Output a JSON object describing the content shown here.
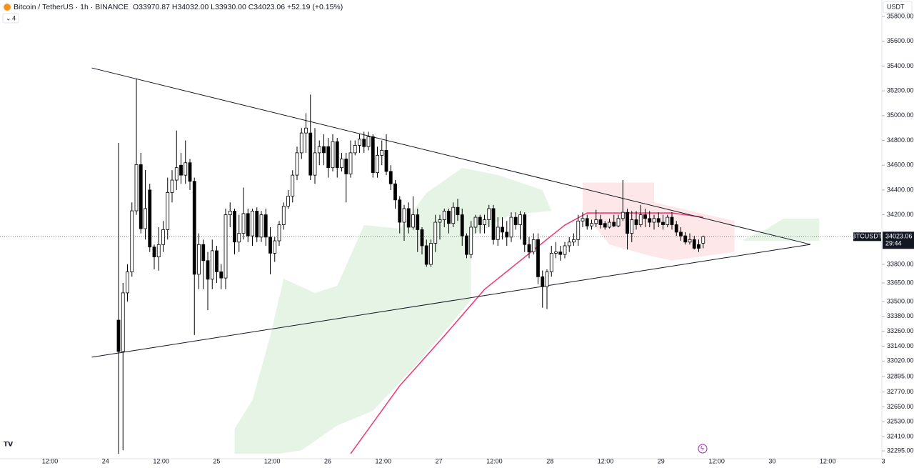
{
  "header": {
    "symbol": "Bitcoin / TetherUS · 1h · BINANCE",
    "ohlc": "O33970.87 H34032.00 L33930.00 C34023.06 +52.19 (+0.15%)",
    "indicators": "4",
    "currency": "USDT"
  },
  "chart_data": {
    "type": "candlestick",
    "up_color": "#ffffff",
    "down_color": "#000000",
    "wick_color": "#000000",
    "candles": [
      [
        33350,
        34780,
        32272,
        33097
      ],
      [
        33097,
        33650,
        32300,
        33570
      ],
      [
        33570,
        33800,
        33500,
        33740
      ],
      [
        33740,
        34300,
        33700,
        34232
      ],
      [
        34232,
        35300,
        34200,
        34605
      ],
      [
        34605,
        34700,
        34050,
        34088
      ],
      [
        34088,
        34560,
        34000,
        34250
      ],
      [
        34400,
        34450,
        33900,
        33940
      ],
      [
        33940,
        33960,
        33760,
        33860
      ],
      [
        33860,
        34100,
        33750,
        33960
      ],
      [
        33960,
        34150,
        33900,
        34080
      ],
      [
        34080,
        34500,
        34000,
        34380
      ],
      [
        34380,
        34560,
        34300,
        34480
      ],
      [
        34480,
        34880,
        34400,
        34580
      ],
      [
        34600,
        34700,
        34450,
        34520
      ],
      [
        34520,
        34800,
        34450,
        34620
      ],
      [
        34620,
        34650,
        34400,
        34470
      ],
      [
        34470,
        34500,
        33230,
        33720
      ],
      [
        33720,
        34050,
        33600,
        33960
      ],
      [
        33960,
        34000,
        33600,
        33830
      ],
      [
        33830,
        33900,
        33430,
        33680
      ],
      [
        33680,
        34000,
        33600,
        33910
      ],
      [
        33910,
        33950,
        33650,
        33740
      ],
      [
        33740,
        33800,
        33600,
        33690
      ],
      [
        33690,
        34250,
        33600,
        34200
      ],
      [
        34200,
        34300,
        34100,
        34230
      ],
      [
        34230,
        34250,
        33880,
        33980
      ],
      [
        33980,
        34200,
        33900,
        34050
      ],
      [
        34050,
        34420,
        34000,
        34210
      ],
      [
        34210,
        34250,
        33980,
        34030
      ],
      [
        34030,
        34250,
        33950,
        34230
      ],
      [
        34230,
        34260,
        33980,
        34020
      ],
      [
        34020,
        34230,
        33980,
        34200
      ],
      [
        34200,
        34250,
        33950,
        34020
      ],
      [
        34020,
        34100,
        33720,
        33890
      ],
      [
        33890,
        34020,
        33820,
        33990
      ],
      [
        33990,
        34150,
        33950,
        34120
      ],
      [
        34120,
        34300,
        34080,
        34270
      ],
      [
        34270,
        34400,
        34250,
        34350
      ],
      [
        34350,
        34560,
        34300,
        34520
      ],
      [
        34520,
        34750,
        34480,
        34700
      ],
      [
        34700,
        34900,
        34650,
        34860
      ],
      [
        34860,
        35020,
        34700,
        34900
      ],
      [
        34860,
        35170,
        34480,
        34520
      ],
      [
        34520,
        34900,
        34450,
        34700
      ],
      [
        34700,
        34800,
        34600,
        34750
      ],
      [
        34750,
        34850,
        34600,
        34700
      ],
      [
        34750,
        34820,
        34500,
        34580
      ],
      [
        34580,
        34850,
        34550,
        34790
      ],
      [
        34790,
        34820,
        34500,
        34580
      ],
      [
        34580,
        34700,
        34550,
        34650
      ],
      [
        34650,
        34700,
        34300,
        34530
      ],
      [
        34530,
        34800,
        34500,
        34700
      ],
      [
        34700,
        34800,
        34680,
        34760
      ],
      [
        34760,
        34850,
        34700,
        34810
      ],
      [
        34810,
        34870,
        34700,
        34750
      ],
      [
        34750,
        34870,
        34720,
        34830
      ],
      [
        34830,
        34850,
        34500,
        34540
      ],
      [
        34540,
        34750,
        34500,
        34680
      ],
      [
        34680,
        34800,
        34600,
        34720
      ],
      [
        34720,
        34850,
        34520,
        34550
      ],
      [
        34550,
        34600,
        34400,
        34450
      ],
      [
        34450,
        34480,
        34250,
        34320
      ],
      [
        34320,
        34350,
        34050,
        34140
      ],
      [
        34140,
        34280,
        33990,
        34250
      ],
      [
        34250,
        34300,
        34050,
        34100
      ],
      [
        34100,
        34350,
        34080,
        34200
      ],
      [
        34200,
        34250,
        33900,
        34080
      ],
      [
        34080,
        34100,
        33880,
        33950
      ],
      [
        33950,
        34000,
        33780,
        33800
      ],
      [
        33800,
        34000,
        33780,
        33970
      ],
      [
        33970,
        34200,
        33900,
        34140
      ],
      [
        34140,
        34200,
        34000,
        34160
      ],
      [
        34160,
        34250,
        34100,
        34230
      ],
      [
        34230,
        34250,
        34050,
        34130
      ],
      [
        34130,
        34300,
        34100,
        34260
      ],
      [
        34260,
        34330,
        34150,
        34200
      ],
      [
        34200,
        34250,
        33950,
        34030
      ],
      [
        34030,
        34050,
        33850,
        33880
      ],
      [
        33880,
        34150,
        33850,
        34100
      ],
      [
        34100,
        34200,
        34050,
        34180
      ],
      [
        34180,
        34200,
        34050,
        34120
      ],
      [
        34120,
        34200,
        34050,
        34160
      ],
      [
        34160,
        34280,
        34100,
        34250
      ],
      [
        34250,
        34280,
        33960,
        34000
      ],
      [
        34000,
        34180,
        33950,
        34100
      ],
      [
        34100,
        34180,
        34000,
        34060
      ],
      [
        34060,
        34150,
        33950,
        34020
      ],
      [
        34020,
        34220,
        33980,
        34180
      ],
      [
        34180,
        34220,
        34080,
        34120
      ],
      [
        34120,
        34230,
        34000,
        34200
      ],
      [
        34200,
        34220,
        33900,
        33960
      ],
      [
        33960,
        34020,
        33850,
        33900
      ],
      [
        33900,
        34050,
        33880,
        34000
      ],
      [
        34000,
        34050,
        33640,
        33700
      ],
      [
        33700,
        33750,
        33450,
        33620
      ],
      [
        33620,
        33760,
        33440,
        33740
      ],
      [
        33740,
        33950,
        33700,
        33890
      ],
      [
        33890,
        33980,
        33850,
        33900
      ],
      [
        33900,
        33950,
        33830,
        33880
      ],
      [
        33880,
        33980,
        33850,
        33950
      ],
      [
        33950,
        34020,
        33900,
        33980
      ],
      [
        33980,
        34050,
        33950,
        34000
      ],
      [
        34000,
        34200,
        33950,
        34150
      ],
      [
        34150,
        34220,
        34100,
        34170
      ],
      [
        34170,
        34200,
        34080,
        34110
      ],
      [
        34110,
        34160,
        34080,
        34130
      ],
      [
        34130,
        34240,
        34100,
        34160
      ],
      [
        34160,
        34200,
        34090,
        34120
      ],
      [
        34130,
        34150,
        34080,
        34100
      ],
      [
        34100,
        34170,
        34090,
        34140
      ],
      [
        34140,
        34200,
        34100,
        34110
      ],
      [
        34110,
        34200,
        34100,
        34170
      ],
      [
        34170,
        34480,
        34150,
        34220
      ],
      [
        34220,
        34250,
        33920,
        34050
      ],
      [
        34050,
        34230,
        33980,
        34160
      ],
      [
        34160,
        34230,
        34080,
        34120
      ],
      [
        34120,
        34280,
        34100,
        34200
      ],
      [
        34200,
        34250,
        34100,
        34170
      ],
      [
        34170,
        34230,
        34100,
        34140
      ],
      [
        34140,
        34200,
        34080,
        34170
      ],
      [
        34170,
        34220,
        34100,
        34140
      ],
      [
        34140,
        34200,
        34080,
        34120
      ],
      [
        34120,
        34200,
        34100,
        34180
      ],
      [
        34180,
        34220,
        34080,
        34120
      ],
      [
        34120,
        34150,
        34030,
        34060
      ],
      [
        34060,
        34100,
        33990,
        34030
      ],
      [
        34030,
        34060,
        33960,
        33980
      ],
      [
        33980,
        34050,
        33960,
        34000
      ],
      [
        34000,
        34030,
        33920,
        33930
      ],
      [
        33960,
        34000,
        33900,
        33930
      ],
      [
        33970.87,
        34032,
        33930,
        34023.06
      ]
    ],
    "overlays": [
      {
        "type": "area",
        "color": "rgba(76,175,80,0.14)",
        "points": [
          [
            26,
            32272
          ],
          [
            26,
            32474
          ],
          [
            30,
            32705
          ],
          [
            34,
            33223
          ],
          [
            37,
            33685
          ],
          [
            44,
            33569
          ],
          [
            49,
            33627
          ],
          [
            55,
            34117
          ],
          [
            63,
            34088
          ],
          [
            69,
            34376
          ],
          [
            77,
            34578
          ],
          [
            85,
            34521
          ],
          [
            95,
            34400
          ],
          [
            97,
            34232
          ],
          [
            88,
            34200
          ],
          [
            79,
            34031
          ],
          [
            79,
            33512
          ],
          [
            67,
            33000
          ],
          [
            57,
            32618
          ],
          [
            49,
            32500
          ],
          [
            41,
            32300
          ],
          [
            36,
            32272
          ]
        ]
      },
      {
        "type": "area",
        "color": "rgba(242,54,69,0.12)",
        "points": [
          [
            104,
            34300
          ],
          [
            104,
            34460
          ],
          [
            120,
            34460
          ],
          [
            120,
            34300
          ],
          [
            138,
            34150
          ],
          [
            138,
            33900
          ],
          [
            124,
            33830
          ],
          [
            119,
            33870
          ],
          [
            110,
            33960
          ],
          [
            104,
            34230
          ]
        ]
      },
      {
        "type": "area",
        "color": "rgba(76,175,80,0.14)",
        "points": [
          [
            140,
            34000
          ],
          [
            145,
            34080
          ],
          [
            149,
            34170
          ],
          [
            157,
            34170
          ],
          [
            157,
            33990
          ],
          [
            140,
            33990
          ]
        ]
      },
      {
        "type": "line",
        "color": "#ec407a",
        "points": [
          [
            52,
            32272
          ],
          [
            63,
            32820
          ],
          [
            73,
            33223
          ],
          [
            82,
            33598
          ],
          [
            92,
            33887
          ],
          [
            100,
            34117
          ],
          [
            105,
            34215
          ],
          [
            114,
            34215
          ],
          [
            124,
            34215
          ],
          [
            131,
            34180
          ]
        ]
      },
      {
        "type": "line",
        "color": "#131722",
        "points": [
          [
            -6,
            35385
          ],
          [
            155,
            33961
          ]
        ]
      },
      {
        "type": "line",
        "color": "#131722",
        "points": [
          [
            -6,
            33051
          ],
          [
            155,
            33961
          ]
        ]
      }
    ],
    "last_price": {
      "value": 34023.06,
      "symbol": "BTCUSDT",
      "countdown": "29:44"
    },
    "ylim": [
      32232,
      35933
    ],
    "yticks": [
      {
        "value": 35800,
        "label": "35800.00"
      },
      {
        "value": 35600,
        "label": "35600.00"
      },
      {
        "value": 35400,
        "label": "35400.00"
      },
      {
        "value": 35200,
        "label": "35200.00"
      },
      {
        "value": 35000,
        "label": "35000.00"
      },
      {
        "value": 34800,
        "label": "34800.00"
      },
      {
        "value": 34600,
        "label": "34600.00"
      },
      {
        "value": 34400,
        "label": "34400.00"
      },
      {
        "value": 34200,
        "label": "34200.00"
      },
      {
        "value": 33800,
        "label": "33800.00"
      },
      {
        "value": 33650,
        "label": "33650.00"
      },
      {
        "value": 33500,
        "label": "33500.00"
      },
      {
        "value": 33380,
        "label": "33380.00"
      },
      {
        "value": 33260,
        "label": "33260.00"
      },
      {
        "value": 33140,
        "label": "33140.00"
      },
      {
        "value": 33020,
        "label": "33020.00"
      },
      {
        "value": 32895,
        "label": "32895.00"
      },
      {
        "value": 32770,
        "label": "32770.00"
      },
      {
        "value": 32650,
        "label": "32650.00"
      },
      {
        "value": 32530,
        "label": "32530.00"
      },
      {
        "value": 32410,
        "label": "32410.00"
      },
      {
        "value": 32295,
        "label": "32295.00"
      }
    ],
    "xticks": [
      "12:00",
      "24",
      "12:00",
      "25",
      "12:00",
      "26",
      "12:00",
      "27",
      "12:00",
      "28",
      "12:00",
      "29",
      "12:00",
      "30",
      "12:00",
      "3"
    ]
  }
}
